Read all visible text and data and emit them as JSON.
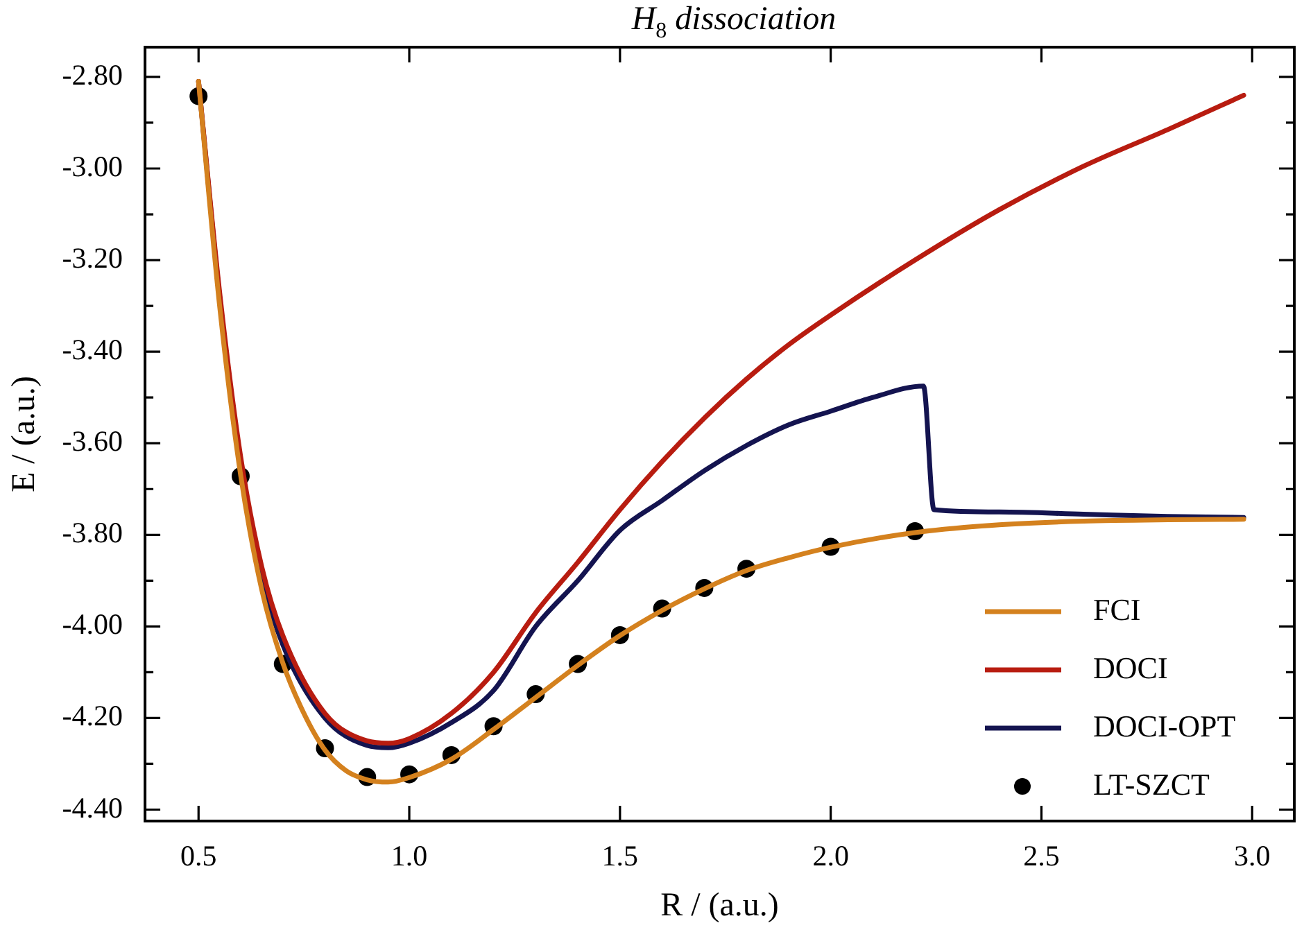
{
  "chart_data": {
    "type": "line",
    "title": "H$_{8}$ dissociation",
    "xlabel": "R / (a.u.)",
    "ylabel": "E / (a.u.)",
    "xlim": [
      0.373,
      3.1
    ],
    "ylim": [
      -4.425,
      -2.735
    ],
    "xticks": [
      0.5,
      {
        "value": 1,
        "label": "1.0"
      },
      1.5,
      {
        "value": 2,
        "label": "2.0"
      },
      2.5,
      {
        "value": 3,
        "label": "3.0"
      }
    ],
    "yticks": [
      {
        "value": -4.4,
        "label": "-4.40"
      },
      {
        "value": -4.3,
        "label": null
      },
      {
        "value": -4.2,
        "label": "-4.20"
      },
      {
        "value": -4.1,
        "label": null
      },
      {
        "value": -4,
        "label": "-4.00"
      },
      {
        "value": -3.9,
        "label": null
      },
      {
        "value": -3.8,
        "label": "-3.80"
      },
      {
        "value": -3.7,
        "label": null
      },
      {
        "value": -3.6,
        "label": "-3.60"
      },
      {
        "value": -3.5,
        "label": null
      },
      {
        "value": -3.4,
        "label": "-3.40"
      },
      {
        "value": -3.3,
        "label": null
      },
      {
        "value": -3.2,
        "label": "-3.20"
      },
      {
        "value": -3.1,
        "label": null
      },
      {
        "value": -3,
        "label": "-3.00"
      },
      {
        "value": -2.9,
        "label": null
      },
      {
        "value": -2.8,
        "label": "-2.80"
      }
    ],
    "grid": false,
    "legend": "bottom right",
    "series": [
      {
        "name": "FCI",
        "marker": "none",
        "color": "#d4811e",
        "x": [
          0.5,
          0.55,
          0.6,
          0.65,
          0.7,
          0.75,
          0.8,
          0.85,
          0.9,
          0.95,
          1.0,
          1.1,
          1.2,
          1.3,
          1.4,
          1.5,
          1.6,
          1.7,
          1.8,
          1.9,
          2.0,
          2.2,
          2.4,
          2.6,
          2.8,
          2.98
        ],
        "values": [
          -2.81,
          -3.3,
          -3.67,
          -3.92,
          -4.08,
          -4.19,
          -4.27,
          -4.315,
          -4.335,
          -4.34,
          -4.33,
          -4.29,
          -4.225,
          -4.155,
          -4.085,
          -4.02,
          -3.965,
          -3.918,
          -3.878,
          -3.85,
          -3.827,
          -3.795,
          -3.778,
          -3.77,
          -3.767,
          -3.766
        ]
      },
      {
        "name": "DOCI",
        "marker": "none",
        "color": "#b81c10",
        "x": [
          0.5,
          0.55,
          0.6,
          0.65,
          0.7,
          0.8,
          0.9,
          0.95,
          1.0,
          1.1,
          1.2,
          1.3,
          1.4,
          1.5,
          1.6,
          1.7,
          1.8,
          1.9,
          2.0,
          2.2,
          2.4,
          2.6,
          2.8,
          2.98
        ],
        "values": [
          -2.81,
          -3.27,
          -3.63,
          -3.87,
          -4.02,
          -4.19,
          -4.25,
          -4.255,
          -4.245,
          -4.19,
          -4.1,
          -3.97,
          -3.86,
          -3.745,
          -3.64,
          -3.545,
          -3.46,
          -3.385,
          -3.32,
          -3.2,
          -3.09,
          -2.995,
          -2.915,
          -2.84
        ]
      },
      {
        "name": "DOCI-OPT",
        "marker": "none",
        "color": "#141450",
        "x": [
          0.5,
          0.55,
          0.6,
          0.65,
          0.7,
          0.8,
          0.9,
          0.95,
          1.0,
          1.1,
          1.2,
          1.3,
          1.4,
          1.5,
          1.6,
          1.7,
          1.8,
          1.9,
          2.0,
          2.1,
          2.22,
          2.245,
          2.4,
          2.6,
          2.8,
          2.98
        ],
        "values": [
          -2.81,
          -3.28,
          -3.65,
          -3.89,
          -4.04,
          -4.2,
          -4.26,
          -4.265,
          -4.255,
          -4.21,
          -4.14,
          -4.0,
          -3.9,
          -3.79,
          -3.725,
          -3.66,
          -3.605,
          -3.56,
          -3.53,
          -3.5,
          -3.475,
          -3.745,
          -3.75,
          -3.755,
          -3.76,
          -3.762
        ]
      },
      {
        "name": "LT-SZCT",
        "type": "scatter",
        "marker": "circle",
        "color": "#000000",
        "x": [
          0.5,
          0.6,
          0.7,
          0.8,
          0.9,
          1.0,
          1.1,
          1.2,
          1.3,
          1.4,
          1.5,
          1.6,
          1.7,
          1.8,
          2.0,
          2.2
        ],
        "values": [
          -2.842,
          -3.672,
          -4.082,
          -4.266,
          -4.329,
          -4.323,
          -4.281,
          -4.218,
          -4.148,
          -4.082,
          -4.019,
          -3.961,
          -3.916,
          -3.874,
          -3.826,
          -3.792
        ]
      }
    ]
  }
}
